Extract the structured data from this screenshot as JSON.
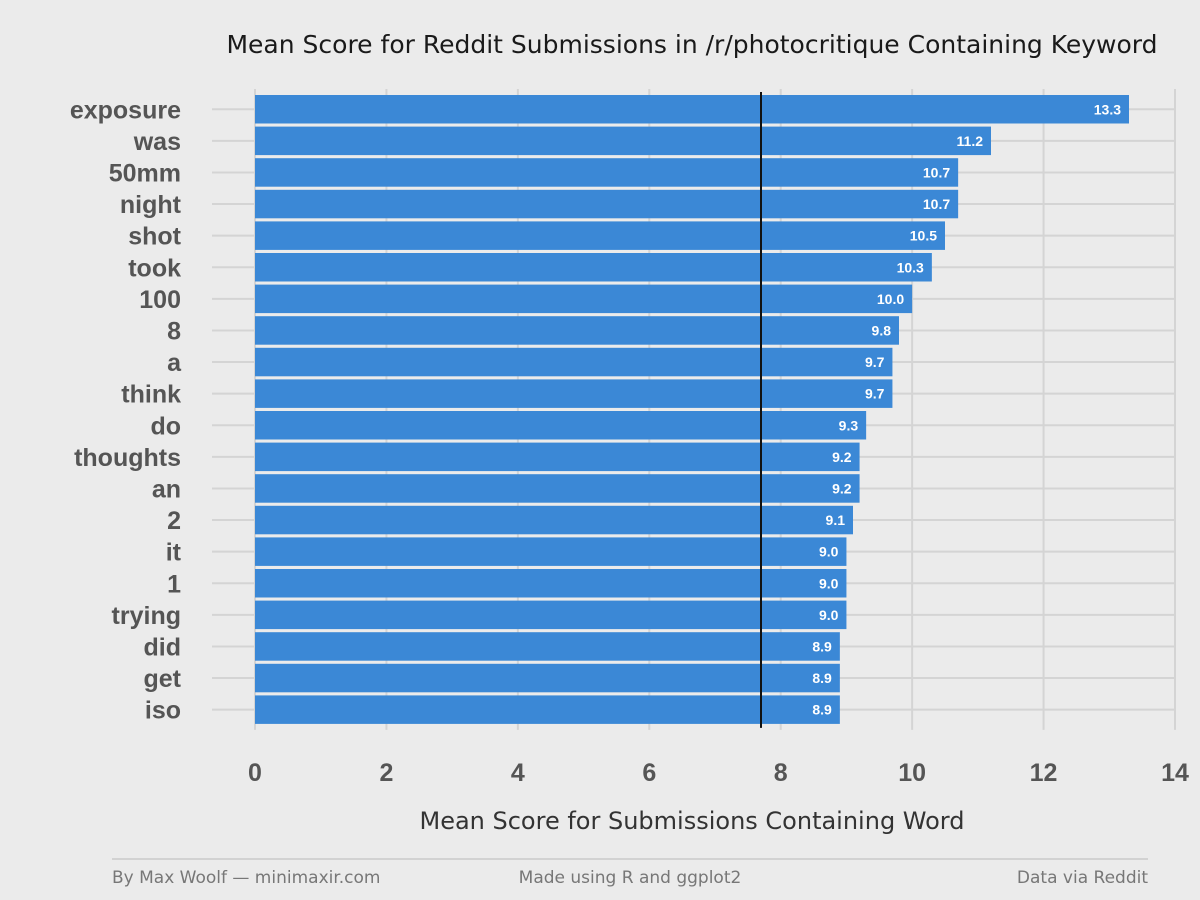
{
  "chart_data": {
    "type": "bar",
    "orientation": "horizontal",
    "title": "Mean Score for Reddit Submissions in /r/photocritique Containing Keyword",
    "xlabel": "Mean Score for Submissions Containing Word",
    "ylabel": "",
    "categories": [
      "exposure",
      "was",
      "50mm",
      "night",
      "shot",
      "took",
      "100",
      "8",
      "a",
      "think",
      "do",
      "thoughts",
      "an",
      "2",
      "it",
      "1",
      "trying",
      "did",
      "get",
      "iso"
    ],
    "values": [
      13.3,
      11.2,
      10.7,
      10.7,
      10.5,
      10.3,
      10.0,
      9.8,
      9.7,
      9.7,
      9.3,
      9.2,
      9.2,
      9.1,
      9.0,
      9.0,
      9.0,
      8.9,
      8.9,
      8.9
    ],
    "value_labels": [
      "13.3",
      "11.2",
      "10.7",
      "10.7",
      "10.5",
      "10.3",
      "10.0",
      "9.8",
      "9.7",
      "9.7",
      "9.3",
      "9.2",
      "9.2",
      "9.1",
      "9.0",
      "9.0",
      "9.0",
      "8.9",
      "8.9",
      "8.9"
    ],
    "xlim": [
      0,
      14
    ],
    "xticks": [
      "0",
      "2",
      "4",
      "6",
      "8",
      "10",
      "12",
      "14"
    ],
    "reference_line": 7.7,
    "grid": true,
    "bar_color": "#3b88d6",
    "background_color": "#ebebeb"
  },
  "footer": {
    "left": "By Max Woolf — minimaxir.com",
    "center": "Made using R and ggplot2",
    "right": "Data via Reddit"
  }
}
